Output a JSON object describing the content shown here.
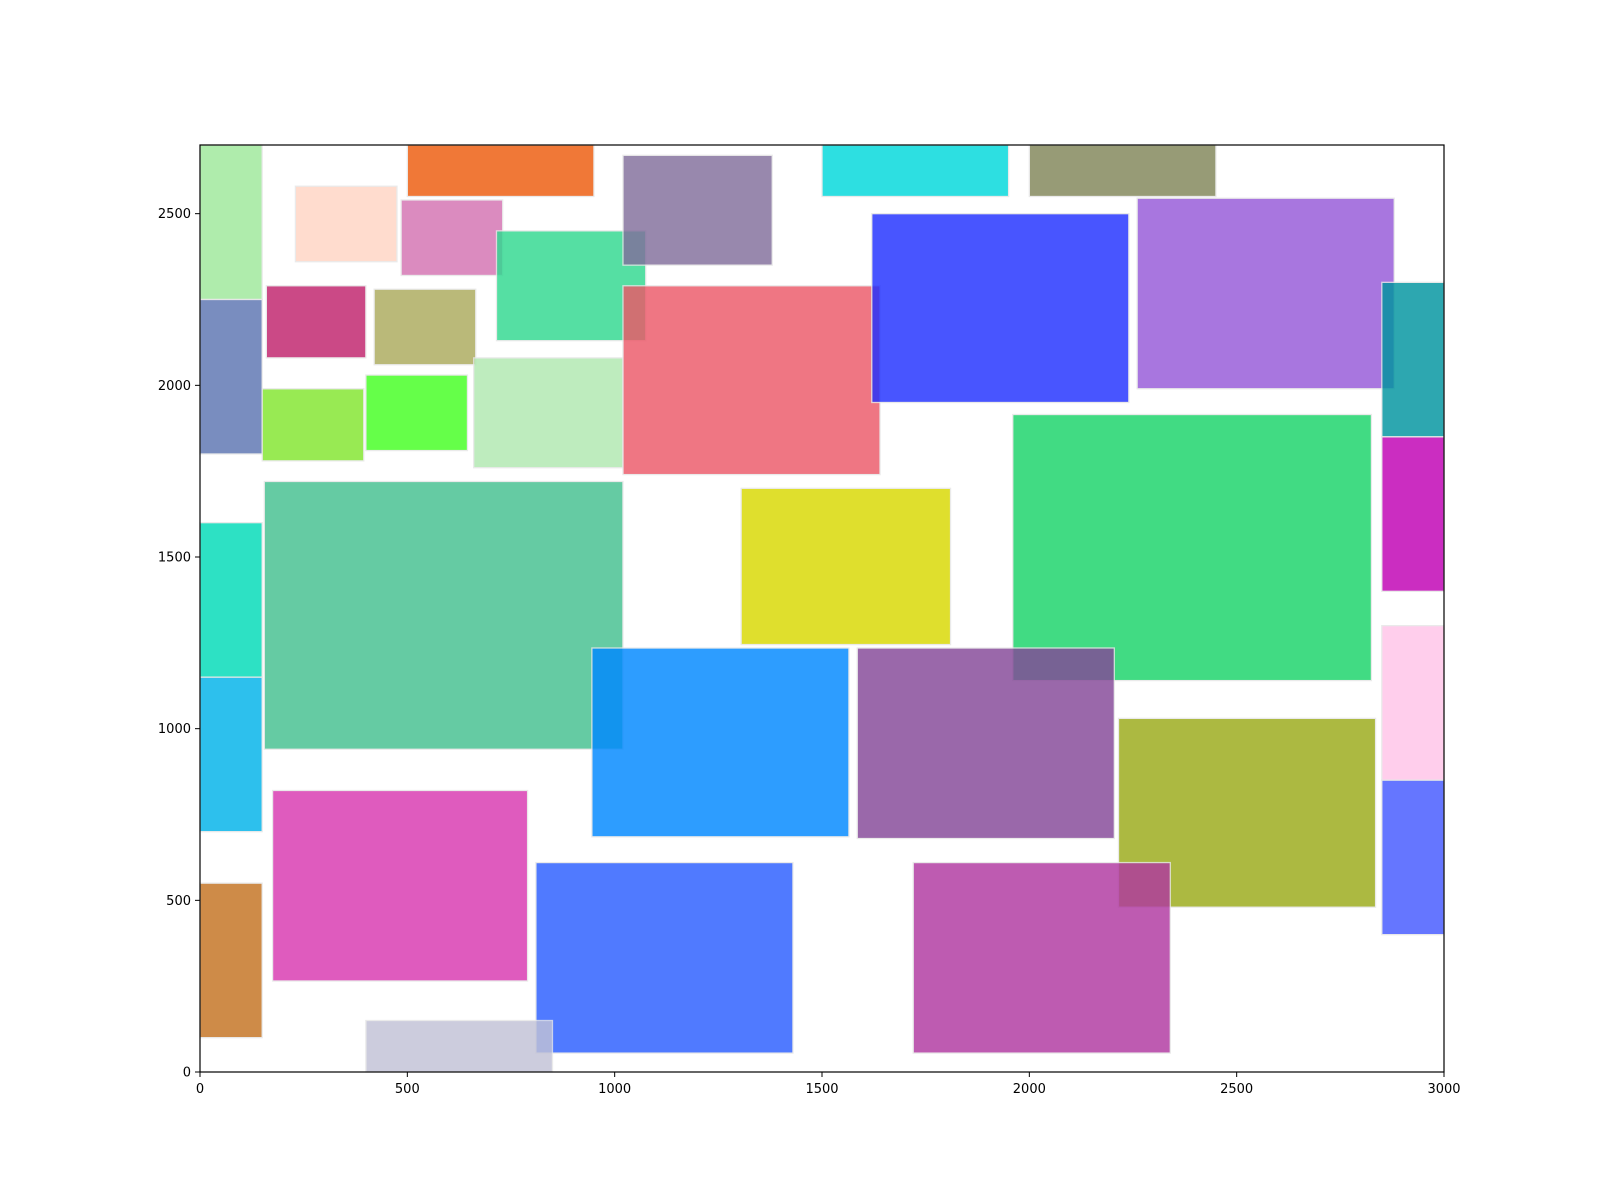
{
  "chart_data": {
    "type": "rectangles",
    "title": "",
    "xlabel": "",
    "ylabel": "",
    "xlim": [
      0,
      3000
    ],
    "ylim": [
      0,
      2700
    ],
    "grid": false,
    "xticks": [
      {
        "value": 0,
        "label": "0"
      },
      {
        "value": 500,
        "label": "500"
      },
      {
        "value": 1000,
        "label": "1000"
      },
      {
        "value": 1500,
        "label": "1500"
      },
      {
        "value": 2000,
        "label": "2000"
      },
      {
        "value": 2500,
        "label": "2500"
      },
      {
        "value": 3000,
        "label": "3000"
      }
    ],
    "yticks": [
      {
        "value": 0,
        "label": "0"
      },
      {
        "value": 500,
        "label": "500"
      },
      {
        "value": 1000,
        "label": "1000"
      },
      {
        "value": 1500,
        "label": "1500"
      },
      {
        "value": 2000,
        "label": "2000"
      },
      {
        "value": 2500,
        "label": "2500"
      }
    ],
    "rectangles": [
      {
        "x0": 0,
        "y0": 2250,
        "x1": 150,
        "y1": 2700,
        "color": "#9ee89a"
      },
      {
        "x0": 0,
        "y0": 1800,
        "x1": 150,
        "y1": 2250,
        "color": "#5c75b2"
      },
      {
        "x0": 0,
        "y0": 1150,
        "x1": 150,
        "y1": 1600,
        "color": "#00dbb8"
      },
      {
        "x0": 0,
        "y0": 700,
        "x1": 150,
        "y1": 1150,
        "color": "#00b3ea"
      },
      {
        "x0": 0,
        "y0": 100,
        "x1": 150,
        "y1": 550,
        "color": "#c47220"
      },
      {
        "x0": 230,
        "y0": 2360,
        "x1": 475,
        "y1": 2580,
        "color": "#ffd5c4"
      },
      {
        "x0": 500,
        "y0": 2550,
        "x1": 950,
        "y1": 2700,
        "color": "#ed5b0c"
      },
      {
        "x0": 485,
        "y0": 2320,
        "x1": 730,
        "y1": 2540,
        "color": "#d472b2"
      },
      {
        "x0": 160,
        "y0": 2080,
        "x1": 400,
        "y1": 2290,
        "color": "#c0226c"
      },
      {
        "x0": 420,
        "y0": 2060,
        "x1": 665,
        "y1": 2280,
        "color": "#abaa5c"
      },
      {
        "x0": 150,
        "y0": 1780,
        "x1": 395,
        "y1": 1990,
        "color": "#82e62e"
      },
      {
        "x0": 400,
        "y0": 1810,
        "x1": 645,
        "y1": 2030,
        "color": "#44ff22"
      },
      {
        "x0": 660,
        "y0": 1760,
        "x1": 1020,
        "y1": 2080,
        "color": "#b0e8b0"
      },
      {
        "x0": 715,
        "y0": 2130,
        "x1": 1075,
        "y1": 2450,
        "color": "#30d890"
      },
      {
        "x0": 1020,
        "y0": 2350,
        "x1": 1380,
        "y1": 2670,
        "color": "#826e9c"
      },
      {
        "x0": 1500,
        "y0": 2550,
        "x1": 1950,
        "y1": 2700,
        "color": "#00d8db"
      },
      {
        "x0": 2000,
        "y0": 2550,
        "x1": 2450,
        "y1": 2700,
        "color": "#818658"
      },
      {
        "x0": 1020,
        "y0": 1740,
        "x1": 1640,
        "y1": 2290,
        "color": "#ec5868"
      },
      {
        "x0": 1620,
        "y0": 1950,
        "x1": 2240,
        "y1": 2500,
        "color": "#2030ff"
      },
      {
        "x0": 2260,
        "y0": 1990,
        "x1": 2880,
        "y1": 2545,
        "color": "#9558d8"
      },
      {
        "x0": 2850,
        "y0": 1850,
        "x1": 3000,
        "y1": 2300,
        "color": "#00949f"
      },
      {
        "x0": 2850,
        "y0": 1400,
        "x1": 3000,
        "y1": 1850,
        "color": "#c000b4"
      },
      {
        "x0": 2850,
        "y0": 850,
        "x1": 3000,
        "y1": 1300,
        "color": "#ffc4e8"
      },
      {
        "x0": 2850,
        "y0": 400,
        "x1": 3000,
        "y1": 850,
        "color": "#4458ff"
      },
      {
        "x0": 155,
        "y0": 940,
        "x1": 1020,
        "y1": 1720,
        "color": "#44c090"
      },
      {
        "x0": 1305,
        "y0": 1245,
        "x1": 1810,
        "y1": 1700,
        "color": "#d8d800"
      },
      {
        "x0": 1960,
        "y0": 1140,
        "x1": 2825,
        "y1": 1915,
        "color": "#18d468"
      },
      {
        "x0": 945,
        "y0": 685,
        "x1": 1565,
        "y1": 1235,
        "color": "#0088ff"
      },
      {
        "x0": 1585,
        "y0": 680,
        "x1": 2205,
        "y1": 1235,
        "color": "#844898"
      },
      {
        "x0": 2215,
        "y0": 480,
        "x1": 2835,
        "y1": 1030,
        "color": "#9aaa18"
      },
      {
        "x0": 175,
        "y0": 265,
        "x1": 790,
        "y1": 820,
        "color": "#d838b0"
      },
      {
        "x0": 810,
        "y0": 55,
        "x1": 1430,
        "y1": 610,
        "color": "#2a5eff"
      },
      {
        "x0": 1720,
        "y0": 55,
        "x1": 2340,
        "y1": 610,
        "color": "#b038a0"
      },
      {
        "x0": 400,
        "y0": 0,
        "x1": 850,
        "y1": 150,
        "color": "#c2c2d6"
      }
    ]
  }
}
